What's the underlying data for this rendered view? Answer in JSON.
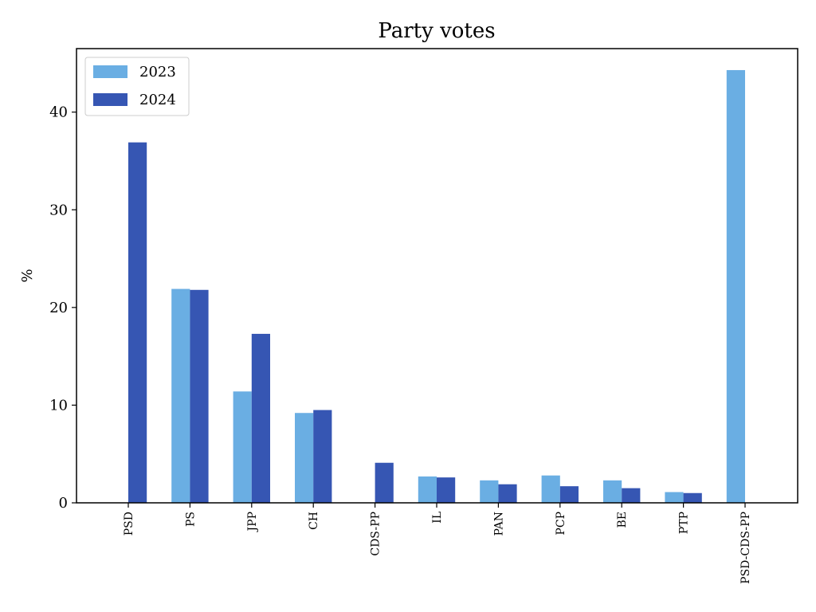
{
  "chart_data": {
    "type": "bar",
    "title": "Party votes",
    "xlabel": "",
    "ylabel": "%",
    "categories": [
      "PSD",
      "PS",
      "JPP",
      "CH",
      "CDS-PP",
      "IL",
      "PAN",
      "PCP",
      "BE",
      "PTP",
      "PSD-CDS-PP"
    ],
    "series": [
      {
        "name": "2023",
        "color": "#6aaee3",
        "values": [
          null,
          21.9,
          11.4,
          9.2,
          null,
          2.7,
          2.3,
          2.8,
          2.3,
          1.1,
          44.3
        ]
      },
      {
        "name": "2024",
        "color": "#3656b3",
        "values": [
          36.9,
          21.8,
          17.3,
          9.5,
          4.1,
          2.6,
          1.9,
          1.7,
          1.5,
          1.0,
          null
        ]
      }
    ],
    "ylim": [
      0,
      46.5
    ],
    "yticks": [
      0,
      10,
      20,
      30,
      40
    ],
    "legend": "top-left",
    "grid": false
  }
}
